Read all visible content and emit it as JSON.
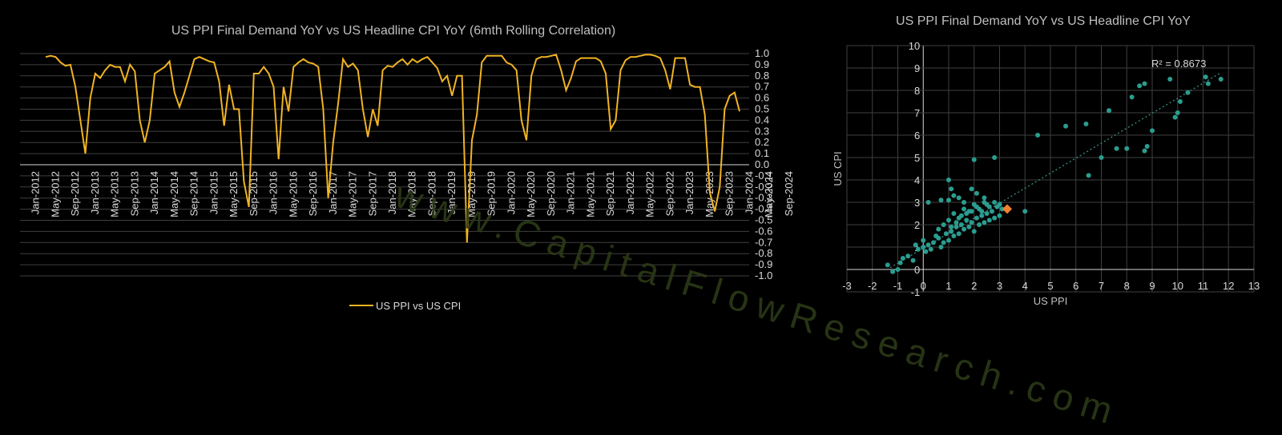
{
  "chart_data": [
    {
      "type": "line",
      "title": "US PPI Final Demand YoY vs US Headline CPI YoY (6mth Rolling Correlation)",
      "ylim": [
        -1.0,
        1.0
      ],
      "y_ticks": [
        "1.0",
        "0.9",
        "0.8",
        "0.7",
        "0.6",
        "0.5",
        "0.4",
        "0.3",
        "0.2",
        "0.1",
        "0.0",
        "-0.1",
        "-0.2",
        "-0.3",
        "-0.4",
        "-0.5",
        "-0.6",
        "-0.7",
        "-0.8",
        "-0.9",
        "-1.0"
      ],
      "x_tick_labels": [
        "Jan-2012",
        "May-2012",
        "Sep-2012",
        "Jan-2013",
        "May-2013",
        "Sep-2013",
        "Jan-2014",
        "May-2014",
        "Sep-2014",
        "Jan-2015",
        "May-2015",
        "Sep-2015",
        "Jan-2016",
        "May-2016",
        "Sep-2016",
        "Jan-2017",
        "May-2017",
        "Sep-2017",
        "Jan-2018",
        "May-2018",
        "Sep-2018",
        "Jan-2019",
        "May-2019",
        "Sep-2019",
        "Jan-2020",
        "May-2020",
        "Sep-2020",
        "Jan-2021",
        "May-2021",
        "Sep-2021",
        "Jan-2022",
        "May-2022",
        "Sep-2022",
        "Jan-2023",
        "May-2023",
        "Sep-2023",
        "Jan-2024",
        "May-2024",
        "Sep-2024"
      ],
      "x_start": "Mar-2012",
      "series": [
        {
          "name": "US PPI vs US CPI",
          "color": "#f0b323",
          "values": [
            0.97,
            0.98,
            0.97,
            0.92,
            0.89,
            0.9,
            0.7,
            0.4,
            0.1,
            0.6,
            0.82,
            0.78,
            0.85,
            0.9,
            0.88,
            0.88,
            0.75,
            0.9,
            0.84,
            0.4,
            0.2,
            0.4,
            0.82,
            0.85,
            0.88,
            0.93,
            0.65,
            0.52,
            0.65,
            0.8,
            0.95,
            0.97,
            0.95,
            0.93,
            0.92,
            0.75,
            0.35,
            0.72,
            0.5,
            0.5,
            -0.15,
            -0.38,
            0.82,
            0.82,
            0.88,
            0.82,
            0.7,
            0.05,
            0.7,
            0.48,
            0.88,
            0.92,
            0.95,
            0.92,
            0.91,
            0.88,
            0.5,
            -0.3,
            0.2,
            0.55,
            0.95,
            0.88,
            0.91,
            0.85,
            0.5,
            0.25,
            0.5,
            0.35,
            0.85,
            0.89,
            0.88,
            0.92,
            0.95,
            0.9,
            0.95,
            0.92,
            0.95,
            0.97,
            0.92,
            0.87,
            0.75,
            0.8,
            0.62,
            0.8,
            0.8,
            -0.7,
            0.22,
            0.45,
            0.92,
            0.98,
            0.98,
            0.98,
            0.98,
            0.92,
            0.9,
            0.85,
            0.4,
            0.22,
            0.8,
            0.95,
            0.97,
            0.97,
            0.98,
            0.99,
            0.85,
            0.67,
            0.78,
            0.93,
            0.96,
            0.96,
            0.96,
            0.96,
            0.93,
            0.82,
            0.32,
            0.4,
            0.85,
            0.94,
            0.97,
            0.97,
            0.98,
            0.99,
            0.99,
            0.98,
            0.96,
            0.85,
            0.68,
            0.96,
            0.96,
            0.96,
            0.72,
            0.7,
            0.7,
            0.45,
            -0.25,
            -0.42,
            -0.2,
            0.5,
            0.62,
            0.65,
            0.48
          ]
        }
      ],
      "legend": "bottom",
      "grid": true
    },
    {
      "type": "scatter",
      "title": "US PPI Final Demand YoY vs US Headline CPI YoY",
      "xlabel": "US PPI",
      "ylabel": "US CPI",
      "xlim": [
        -3,
        13
      ],
      "ylim": [
        -1,
        10
      ],
      "x_ticks": [
        "-3",
        "-2",
        "-1",
        "0",
        "1",
        "2",
        "3",
        "4",
        "5",
        "6",
        "7",
        "8",
        "9",
        "10",
        "11",
        "12",
        "13"
      ],
      "y_ticks": [
        "10",
        "9",
        "8",
        "7",
        "6",
        "5",
        "4",
        "3",
        "2",
        "1",
        "0",
        "-1"
      ],
      "grid": true,
      "annotation": "R² = 0.8673",
      "trendline": {
        "slope": 0.67,
        "intercept": 0.95,
        "from_x": -1.3,
        "to_x": 11.7,
        "color": "#3a8f86"
      },
      "points_color": "#2a9d8f",
      "highlight": {
        "x": 3.3,
        "y": 2.7,
        "color": "#f07f2e"
      },
      "points": [
        [
          -1.4,
          0.2
        ],
        [
          -1.2,
          -0.1
        ],
        [
          -1.0,
          0.0
        ],
        [
          -0.9,
          0.3
        ],
        [
          -0.8,
          0.5
        ],
        [
          -0.6,
          0.6
        ],
        [
          -0.4,
          0.4
        ],
        [
          -0.2,
          0.9
        ],
        [
          0.0,
          1.0
        ],
        [
          0.1,
          0.8
        ],
        [
          0.2,
          1.1
        ],
        [
          0.3,
          0.9
        ],
        [
          -0.3,
          1.1
        ],
        [
          0.0,
          1.3
        ],
        [
          0.4,
          1.2
        ],
        [
          0.5,
          1.5
        ],
        [
          0.6,
          1.4
        ],
        [
          0.7,
          1.0
        ],
        [
          0.8,
          1.2
        ],
        [
          0.9,
          1.6
        ],
        [
          1.0,
          1.3
        ],
        [
          1.1,
          1.7
        ],
        [
          1.2,
          1.5
        ],
        [
          1.3,
          1.9
        ],
        [
          1.4,
          1.6
        ],
        [
          1.5,
          2.0
        ],
        [
          1.6,
          1.8
        ],
        [
          1.7,
          2.2
        ],
        [
          1.8,
          1.9
        ],
        [
          1.9,
          2.1
        ],
        [
          2.0,
          1.7
        ],
        [
          2.1,
          2.3
        ],
        [
          2.2,
          2.0
        ],
        [
          2.3,
          2.4
        ],
        [
          2.4,
          2.1
        ],
        [
          2.5,
          2.5
        ],
        [
          2.6,
          2.2
        ],
        [
          2.7,
          2.6
        ],
        [
          2.8,
          2.3
        ],
        [
          2.9,
          2.8
        ],
        [
          3.0,
          2.4
        ],
        [
          3.1,
          2.7
        ],
        [
          1.0,
          2.2
        ],
        [
          1.2,
          2.5
        ],
        [
          1.4,
          2.3
        ],
        [
          1.6,
          2.7
        ],
        [
          1.8,
          2.6
        ],
        [
          2.0,
          2.9
        ],
        [
          2.2,
          2.7
        ],
        [
          2.4,
          3.0
        ],
        [
          2.6,
          2.8
        ],
        [
          2.8,
          3.0
        ],
        [
          3.0,
          2.9
        ],
        [
          0.8,
          2.0
        ],
        [
          0.6,
          1.8
        ],
        [
          1.1,
          1.9
        ],
        [
          1.3,
          2.1
        ],
        [
          1.5,
          2.4
        ],
        [
          1.7,
          2.5
        ],
        [
          1.9,
          2.6
        ],
        [
          2.1,
          2.8
        ],
        [
          2.3,
          2.6
        ],
        [
          2.5,
          2.9
        ],
        [
          1.0,
          3.1
        ],
        [
          1.2,
          3.3
        ],
        [
          1.4,
          3.2
        ],
        [
          1.1,
          3.6
        ],
        [
          1.0,
          4.0
        ],
        [
          1.9,
          3.6
        ],
        [
          2.1,
          3.4
        ],
        [
          2.4,
          3.2
        ],
        [
          0.7,
          3.1
        ],
        [
          0.2,
          3.0
        ],
        [
          1.6,
          3.0
        ],
        [
          2.0,
          4.9
        ],
        [
          2.8,
          5.0
        ],
        [
          4.0,
          2.6
        ],
        [
          4.5,
          6.0
        ],
        [
          5.6,
          6.4
        ],
        [
          6.4,
          6.5
        ],
        [
          6.5,
          4.2
        ],
        [
          7.0,
          5.0
        ],
        [
          7.3,
          7.1
        ],
        [
          7.6,
          5.4
        ],
        [
          8.0,
          5.4
        ],
        [
          8.2,
          7.7
        ],
        [
          8.5,
          8.2
        ],
        [
          8.7,
          8.3
        ],
        [
          8.7,
          5.3
        ],
        [
          8.8,
          5.5
        ],
        [
          9.0,
          6.2
        ],
        [
          9.7,
          8.5
        ],
        [
          9.9,
          6.8
        ],
        [
          10.0,
          7.0
        ],
        [
          10.1,
          7.5
        ],
        [
          10.4,
          7.9
        ],
        [
          11.1,
          8.6
        ],
        [
          11.2,
          8.3
        ],
        [
          11.7,
          8.5
        ],
        [
          3.3,
          2.7
        ]
      ]
    }
  ],
  "watermark": "www.CapitalFlowResearch.com"
}
